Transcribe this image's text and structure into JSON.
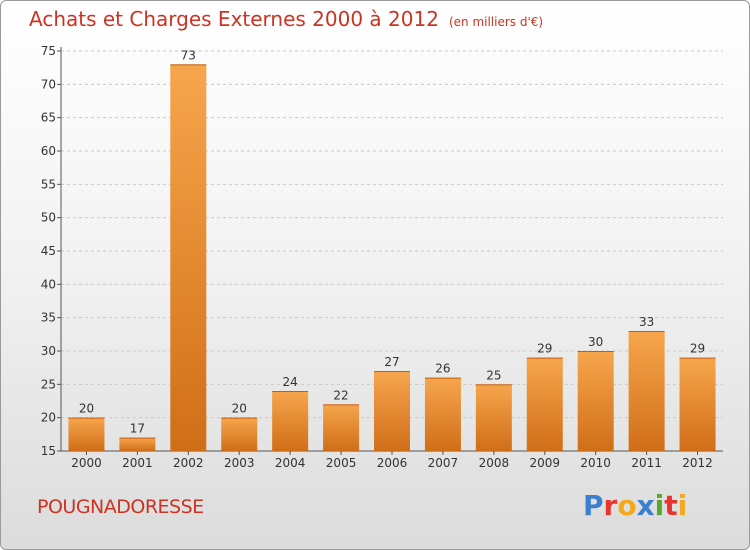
{
  "header": {
    "title": "Achats et Charges Externes 2000 à 2012",
    "unit": "(en milliers d'€)"
  },
  "footer": {
    "commune": "POUGNADORESSE",
    "logo_text": "Proxiti"
  },
  "colors": {
    "title": "#cc3322",
    "bar_light": "#f7a64d",
    "bar_dark": "#d06e18",
    "logo_letters": [
      "#3b7fd0",
      "#e8342e",
      "#f4a81d",
      "#3b7fd0",
      "#5aa52c",
      "#e8342e",
      "#f4a81d"
    ]
  },
  "chart_data": {
    "type": "bar",
    "title": "Achats et Charges Externes 2000 à 2012",
    "xlabel": "",
    "ylabel": "",
    "categories": [
      "2000",
      "2001",
      "2002",
      "2003",
      "2004",
      "2005",
      "2006",
      "2007",
      "2008",
      "2009",
      "2010",
      "2011",
      "2012"
    ],
    "values": [
      20,
      17,
      73,
      20,
      24,
      22,
      27,
      26,
      25,
      29,
      30,
      33,
      29
    ],
    "ylim": [
      15,
      75
    ],
    "yticks": [
      15,
      20,
      25,
      30,
      35,
      40,
      45,
      50,
      55,
      60,
      65,
      70,
      75
    ],
    "grid": true,
    "legend": "none"
  }
}
